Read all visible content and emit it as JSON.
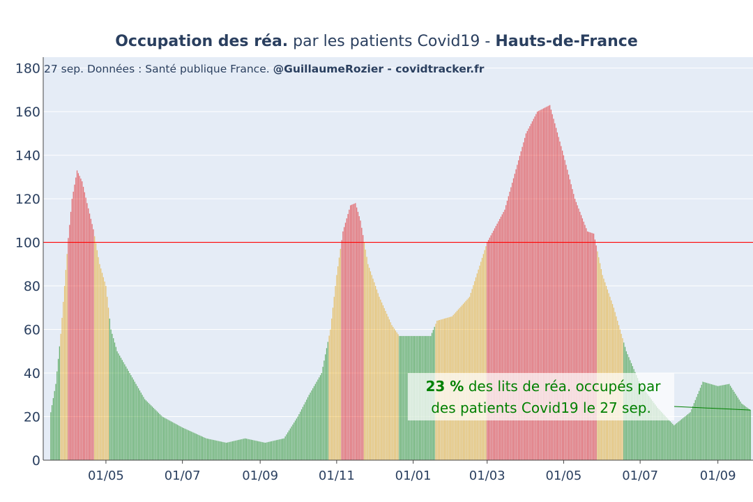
{
  "title": {
    "part1_bold": "Occupation des réa.",
    "part2": " par les patients Covid19 - ",
    "part3_bold": "Hauts-de-France"
  },
  "subtitle": {
    "text": "27 sep. Données : Santé publique France. ",
    "bold": "@GuillaumeRozier - covidtracker.fr"
  },
  "annotation": {
    "value_bold": "23  %",
    "line1_rest": " des lits de réa. occupés par",
    "line2": "des patients Covid19 le 27 sep."
  },
  "colors": {
    "background": "#e5ecf6",
    "grid": "#ffffff",
    "threshold": "#ff0000",
    "green": "#008000",
    "orange": "#e8a000",
    "red": "#e00000",
    "text": "#2a3f5f"
  },
  "chart_data": {
    "type": "bar",
    "x_start": "2020-03-18",
    "x_end": "2021-09-27",
    "xlim": [
      "2020-03-12",
      "2021-09-29"
    ],
    "ylim": [
      0,
      185
    ],
    "y_ticks": [
      0,
      20,
      40,
      60,
      80,
      100,
      120,
      140,
      160,
      180
    ],
    "x_ticks": [
      {
        "date": "2020-05-01",
        "label": "01/05"
      },
      {
        "date": "2020-07-01",
        "label": "01/07"
      },
      {
        "date": "2020-09-01",
        "label": "01/09"
      },
      {
        "date": "2020-11-01",
        "label": "01/11"
      },
      {
        "date": "2021-01-01",
        "label": "01/01"
      },
      {
        "date": "2021-03-01",
        "label": "01/03"
      },
      {
        "date": "2021-05-01",
        "label": "01/05"
      },
      {
        "date": "2021-07-01",
        "label": "01/07"
      },
      {
        "date": "2021-09-01",
        "label": "01/09"
      }
    ],
    "threshold": 100,
    "series_anchors": [
      [
        "2020-03-18",
        22
      ],
      [
        "2020-03-22",
        35
      ],
      [
        "2020-03-26",
        58
      ],
      [
        "2020-03-29",
        80
      ],
      [
        "2020-04-01",
        102
      ],
      [
        "2020-04-04",
        120
      ],
      [
        "2020-04-08",
        133
      ],
      [
        "2020-04-12",
        128
      ],
      [
        "2020-04-16",
        118
      ],
      [
        "2020-04-21",
        106
      ],
      [
        "2020-04-26",
        90
      ],
      [
        "2020-05-01",
        80
      ],
      [
        "2020-05-05",
        60
      ],
      [
        "2020-05-10",
        50
      ],
      [
        "2020-05-20",
        40
      ],
      [
        "2020-06-01",
        28
      ],
      [
        "2020-06-15",
        20
      ],
      [
        "2020-07-01",
        15
      ],
      [
        "2020-07-20",
        10
      ],
      [
        "2020-08-05",
        8
      ],
      [
        "2020-08-20",
        10
      ],
      [
        "2020-09-05",
        8
      ],
      [
        "2020-09-20",
        10
      ],
      [
        "2020-10-01",
        20
      ],
      [
        "2020-10-10",
        30
      ],
      [
        "2020-10-20",
        40
      ],
      [
        "2020-10-27",
        60
      ],
      [
        "2020-11-01",
        85
      ],
      [
        "2020-11-06",
        105
      ],
      [
        "2020-11-12",
        117
      ],
      [
        "2020-11-16",
        118
      ],
      [
        "2020-11-20",
        110
      ],
      [
        "2020-11-26",
        90
      ],
      [
        "2020-12-05",
        75
      ],
      [
        "2020-12-15",
        62
      ],
      [
        "2020-12-21",
        57
      ],
      [
        "2021-01-01",
        57
      ],
      [
        "2021-01-15",
        57
      ],
      [
        "2021-01-20",
        64
      ],
      [
        "2021-02-01",
        66
      ],
      [
        "2021-02-15",
        75
      ],
      [
        "2021-03-01",
        100
      ],
      [
        "2021-03-15",
        115
      ],
      [
        "2021-04-01",
        150
      ],
      [
        "2021-04-10",
        160
      ],
      [
        "2021-04-20",
        163
      ],
      [
        "2021-05-01",
        140
      ],
      [
        "2021-05-10",
        120
      ],
      [
        "2021-05-20",
        105
      ],
      [
        "2021-05-25",
        104
      ],
      [
        "2021-06-01",
        85
      ],
      [
        "2021-06-10",
        70
      ],
      [
        "2021-06-20",
        50
      ],
      [
        "2021-07-01",
        35
      ],
      [
        "2021-07-15",
        24
      ],
      [
        "2021-07-28",
        16
      ],
      [
        "2021-08-10",
        22
      ],
      [
        "2021-08-20",
        36
      ],
      [
        "2021-09-01",
        34
      ],
      [
        "2021-09-10",
        35
      ],
      [
        "2021-09-20",
        26
      ],
      [
        "2021-09-27",
        23
      ]
    ]
  }
}
